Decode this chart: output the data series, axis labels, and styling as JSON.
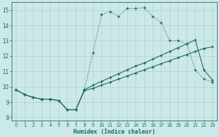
{
  "xlabel": "Humidex (Indice chaleur)",
  "bg_color": "#cce8e8",
  "line_color": "#1a6b5a",
  "xlim": [
    -0.5,
    23.5
  ],
  "ylim": [
    7.8,
    15.5
  ],
  "xticks": [
    0,
    1,
    2,
    3,
    4,
    5,
    6,
    7,
    8,
    9,
    10,
    11,
    12,
    13,
    14,
    15,
    16,
    17,
    18,
    19,
    20,
    21,
    22,
    23
  ],
  "yticks": [
    8,
    9,
    10,
    11,
    12,
    13,
    14,
    15
  ],
  "grid_color": "#afd0d0",
  "series1_dotted": {
    "x": [
      0,
      1,
      2,
      3,
      4,
      5,
      6,
      7,
      8,
      9,
      10,
      11,
      12,
      13,
      14,
      15,
      16,
      17,
      18,
      19,
      20,
      21,
      22,
      23
    ],
    "y": [
      9.8,
      9.5,
      9.3,
      9.2,
      9.2,
      9.1,
      8.5,
      8.5,
      9.8,
      12.2,
      14.7,
      14.9,
      14.6,
      15.1,
      15.1,
      15.15,
      14.6,
      14.2,
      13.0,
      13.0,
      12.8,
      11.1,
      10.5,
      10.3
    ]
  },
  "series2_solid": {
    "x": [
      0,
      1,
      2,
      3,
      4,
      5,
      6,
      7,
      8,
      9,
      10,
      11,
      12,
      13,
      14,
      15,
      16,
      17,
      18,
      19,
      20,
      21,
      22,
      23
    ],
    "y": [
      9.8,
      9.5,
      9.3,
      9.2,
      9.2,
      9.1,
      8.5,
      8.5,
      9.75,
      9.9,
      10.1,
      10.3,
      10.5,
      10.7,
      10.9,
      11.1,
      11.3,
      11.5,
      11.7,
      11.9,
      12.1,
      12.3,
      12.5,
      12.6
    ]
  },
  "series3_solid": {
    "x": [
      0,
      1,
      2,
      3,
      4,
      5,
      6,
      7,
      8,
      9,
      10,
      11,
      12,
      13,
      14,
      15,
      16,
      17,
      18,
      19,
      20,
      21,
      22,
      23
    ],
    "y": [
      9.8,
      9.5,
      9.3,
      9.2,
      9.2,
      9.1,
      8.5,
      8.5,
      9.8,
      10.1,
      10.35,
      10.6,
      10.85,
      11.1,
      11.35,
      11.55,
      11.8,
      12.05,
      12.3,
      12.55,
      12.8,
      13.05,
      11.1,
      10.45
    ]
  }
}
